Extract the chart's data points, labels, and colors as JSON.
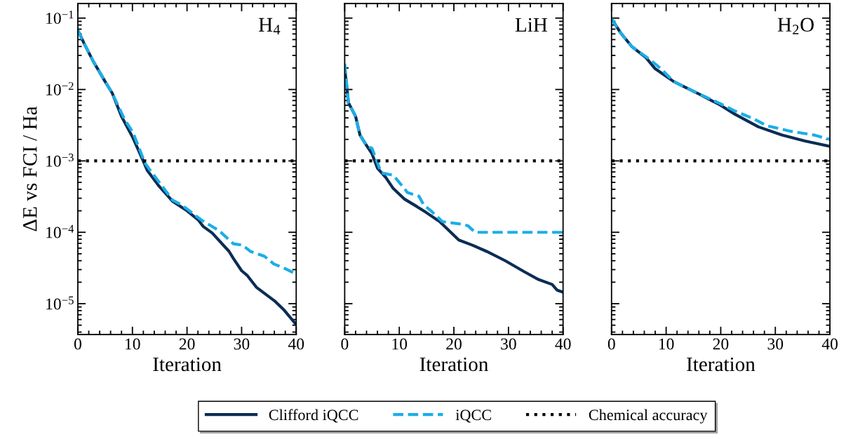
{
  "chart_data": [
    {
      "type": "line",
      "title": "H$_{4}$",
      "xlabel": "Iteration",
      "ylabel": "ΔE vs FCI / Ha",
      "log": "y",
      "xlim": [
        0,
        40
      ],
      "xticks": [
        0,
        10,
        20,
        30,
        40
      ],
      "ylim": [
        3.7e-06,
        0.16
      ],
      "yticks": [
        {
          "value": 1e-05,
          "label": "10$^{−5}$"
        },
        {
          "value": 0.0001,
          "label": "10$^{−4}$"
        },
        {
          "value": 0.001,
          "label": "10$^{−3}$"
        },
        {
          "value": 0.01,
          "label": "10$^{−2}$"
        },
        {
          "value": 0.1,
          "label": "10$^{−1}$"
        }
      ],
      "legend": "bottom",
      "series": [
        {
          "name": "Clifford iQCC",
          "color": "#0b2d54",
          "line_style": "solid",
          "x": [
            0,
            1.1,
            2.8,
            5,
            6.3,
            8,
            10.1,
            11.8,
            12.7,
            14.9,
            17.4,
            20,
            22.1,
            23,
            24.6,
            27.7,
            28.5,
            30,
            31,
            32.7,
            36,
            37.8,
            40
          ],
          "values": [
            0.068,
            0.045,
            0.025,
            0.0129,
            0.0089,
            0.0042,
            0.0021,
            0.00107,
            0.00074,
            0.00044,
            0.00027,
            0.0002,
            0.000148,
            0.00012,
            9.8e-05,
            5.4e-05,
            4.3e-05,
            2.9e-05,
            2.5e-05,
            1.7e-05,
            1.1e-05,
            8.1e-06,
            5.1e-06
          ]
        },
        {
          "name": "iQCC",
          "color": "#1aaee8",
          "line_style": "dashed",
          "x": [
            0,
            1.1,
            2.8,
            5,
            6.3,
            8.5,
            10.1,
            12.3,
            13.6,
            17.4,
            19.1,
            22.5,
            25.9,
            28.5,
            30.2,
            31.6,
            34.2,
            35.9,
            37.6,
            40
          ],
          "values": [
            0.068,
            0.045,
            0.025,
            0.0129,
            0.0089,
            0.0039,
            0.0025,
            0.00093,
            0.00068,
            0.00028,
            0.00024,
            0.000151,
            0.000105,
            6.9e-05,
            6.6e-05,
            5.4e-05,
            4.6e-05,
            3.6e-05,
            3.2e-05,
            2.6e-05
          ]
        }
      ],
      "ref_lines": [
        {
          "axis": "y",
          "value": 0.001,
          "label": "Chemical accuracy",
          "color": "#000000",
          "line_style": "dotted"
        }
      ]
    },
    {
      "type": "line",
      "title": "LiH",
      "xlabel": "Iteration",
      "log": "y",
      "xlim": [
        0,
        40
      ],
      "xticks": [
        0,
        10,
        20,
        30,
        40
      ],
      "ylim": [
        3.7e-06,
        0.16
      ],
      "tick_labels": "x",
      "series": [
        {
          "color": "#0b2d54",
          "line_style": "solid",
          "x": [
            0,
            0.7,
            2,
            2.8,
            4.1,
            5,
            6,
            7.5,
            8.9,
            11,
            13.2,
            14.9,
            17.4,
            20.9,
            23.4,
            26,
            29.4,
            32.9,
            35.4,
            38,
            38.9,
            40
          ],
          "values": [
            0.02,
            0.0065,
            0.0042,
            0.0023,
            0.0016,
            0.00126,
            0.00079,
            0.00059,
            0.00041,
            0.00029,
            0.00023,
            0.00019,
            0.000141,
            7.8e-05,
            6.6e-05,
            5.4e-05,
            4e-05,
            2.8e-05,
            2.2e-05,
            1.86e-05,
            1.55e-05,
            1.45e-05
          ]
        },
        {
          "color": "#1aaee8",
          "line_style": "dashed",
          "x": [
            0,
            0.7,
            2,
            2.8,
            4.1,
            5,
            6.7,
            8.9,
            10.6,
            11.5,
            13.6,
            14.5,
            15.8,
            17.9,
            21.7,
            22.6,
            23.9,
            40
          ],
          "values": [
            0.023,
            0.0065,
            0.0042,
            0.0023,
            0.0016,
            0.0015,
            0.00068,
            0.00063,
            0.00044,
            0.00036,
            0.00032,
            0.00024,
            0.0002,
            0.000141,
            0.000129,
            0.000123,
            0.0001,
            0.0001
          ]
        }
      ],
      "ref_lines": [
        {
          "axis": "y",
          "value": 0.001,
          "color": "#000000",
          "line_style": "dotted"
        }
      ]
    },
    {
      "type": "line",
      "title": "H$_{2}$O",
      "xlabel": "Iteration",
      "log": "y",
      "xlim": [
        0,
        40
      ],
      "xticks": [
        0,
        10,
        20,
        30,
        40
      ],
      "ylim": [
        3.7e-06,
        0.16
      ],
      "tick_labels": "x",
      "series": [
        {
          "color": "#0b2d54",
          "line_style": "solid",
          "x": [
            0,
            1.6,
            3.7,
            6.3,
            8,
            11.4,
            15.7,
            20,
            22.6,
            26.9,
            31.2,
            35.4,
            40
          ],
          "values": [
            0.098,
            0.063,
            0.04,
            0.028,
            0.0195,
            0.0129,
            0.0089,
            0.006,
            0.0045,
            0.003,
            0.0023,
            0.0019,
            0.0016
          ]
        },
        {
          "color": "#1aaee8",
          "line_style": "dashed",
          "x": [
            0,
            1.6,
            3.7,
            7.1,
            8.9,
            11.4,
            15.7,
            20,
            22.6,
            26,
            28.5,
            32.8,
            37.1,
            40
          ],
          "values": [
            0.098,
            0.063,
            0.04,
            0.026,
            0.02,
            0.0129,
            0.0089,
            0.0063,
            0.005,
            0.0039,
            0.0031,
            0.0026,
            0.0023,
            0.002
          ]
        }
      ],
      "ref_lines": [
        {
          "axis": "y",
          "value": 0.001,
          "color": "#000000",
          "line_style": "dotted"
        }
      ]
    }
  ]
}
